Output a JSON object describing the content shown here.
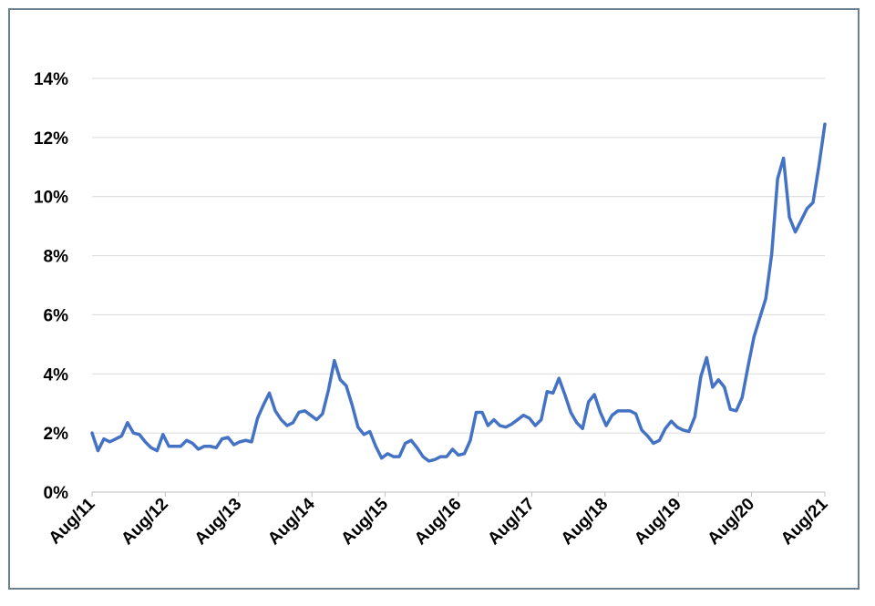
{
  "colors": {
    "series_line": "#4472c4",
    "gridline": "#d9d9d9",
    "frame_border": "#6b7f8c"
  },
  "chart_data": {
    "type": "line",
    "title": "",
    "xlabel": "",
    "ylabel": "",
    "ylim": [
      0,
      14
    ],
    "yticks": [
      "0%",
      "2%",
      "4%",
      "6%",
      "8%",
      "10%",
      "12%",
      "14%"
    ],
    "x_tick_labels": [
      "Aug/11",
      "Aug/12",
      "Aug/13",
      "Aug/14",
      "Aug/15",
      "Aug/16",
      "Aug/17",
      "Aug/18",
      "Aug/19",
      "Aug/20",
      "Aug/21"
    ],
    "grid": "horizontal",
    "legend": "none",
    "series": [
      {
        "values": [
          2.0,
          1.4,
          1.8,
          1.7,
          1.8,
          1.9,
          2.35,
          2.0,
          1.95,
          1.7,
          1.5,
          1.4,
          1.95,
          1.55,
          1.55,
          1.55,
          1.75,
          1.65,
          1.45,
          1.55,
          1.55,
          1.5,
          1.8,
          1.85,
          1.6,
          1.7,
          1.75,
          1.7,
          2.5,
          2.95,
          3.35,
          2.75,
          2.45,
          2.25,
          2.35,
          2.7,
          2.75,
          2.6,
          2.45,
          2.65,
          3.45,
          4.45,
          3.8,
          3.6,
          2.95,
          2.2,
          1.95,
          2.05,
          1.55,
          1.15,
          1.3,
          1.2,
          1.2,
          1.65,
          1.75,
          1.5,
          1.2,
          1.05,
          1.1,
          1.2,
          1.2,
          1.45,
          1.25,
          1.3,
          1.75,
          2.7,
          2.7,
          2.25,
          2.45,
          2.25,
          2.2,
          2.3,
          2.45,
          2.6,
          2.5,
          2.25,
          2.45,
          3.4,
          3.35,
          3.85,
          3.3,
          2.7,
          2.35,
          2.15,
          3.05,
          3.3,
          2.7,
          2.25,
          2.6,
          2.75,
          2.75,
          2.75,
          2.65,
          2.1,
          1.9,
          1.65,
          1.75,
          2.15,
          2.4,
          2.2,
          2.1,
          2.05,
          2.55,
          3.9,
          4.55,
          3.55,
          3.8,
          3.55,
          2.8,
          2.75,
          3.2,
          4.25,
          5.25,
          5.9,
          6.55,
          8.05,
          10.6,
          11.3,
          9.3,
          8.8,
          9.2,
          9.6,
          9.8,
          11.05,
          12.45
        ]
      }
    ]
  }
}
